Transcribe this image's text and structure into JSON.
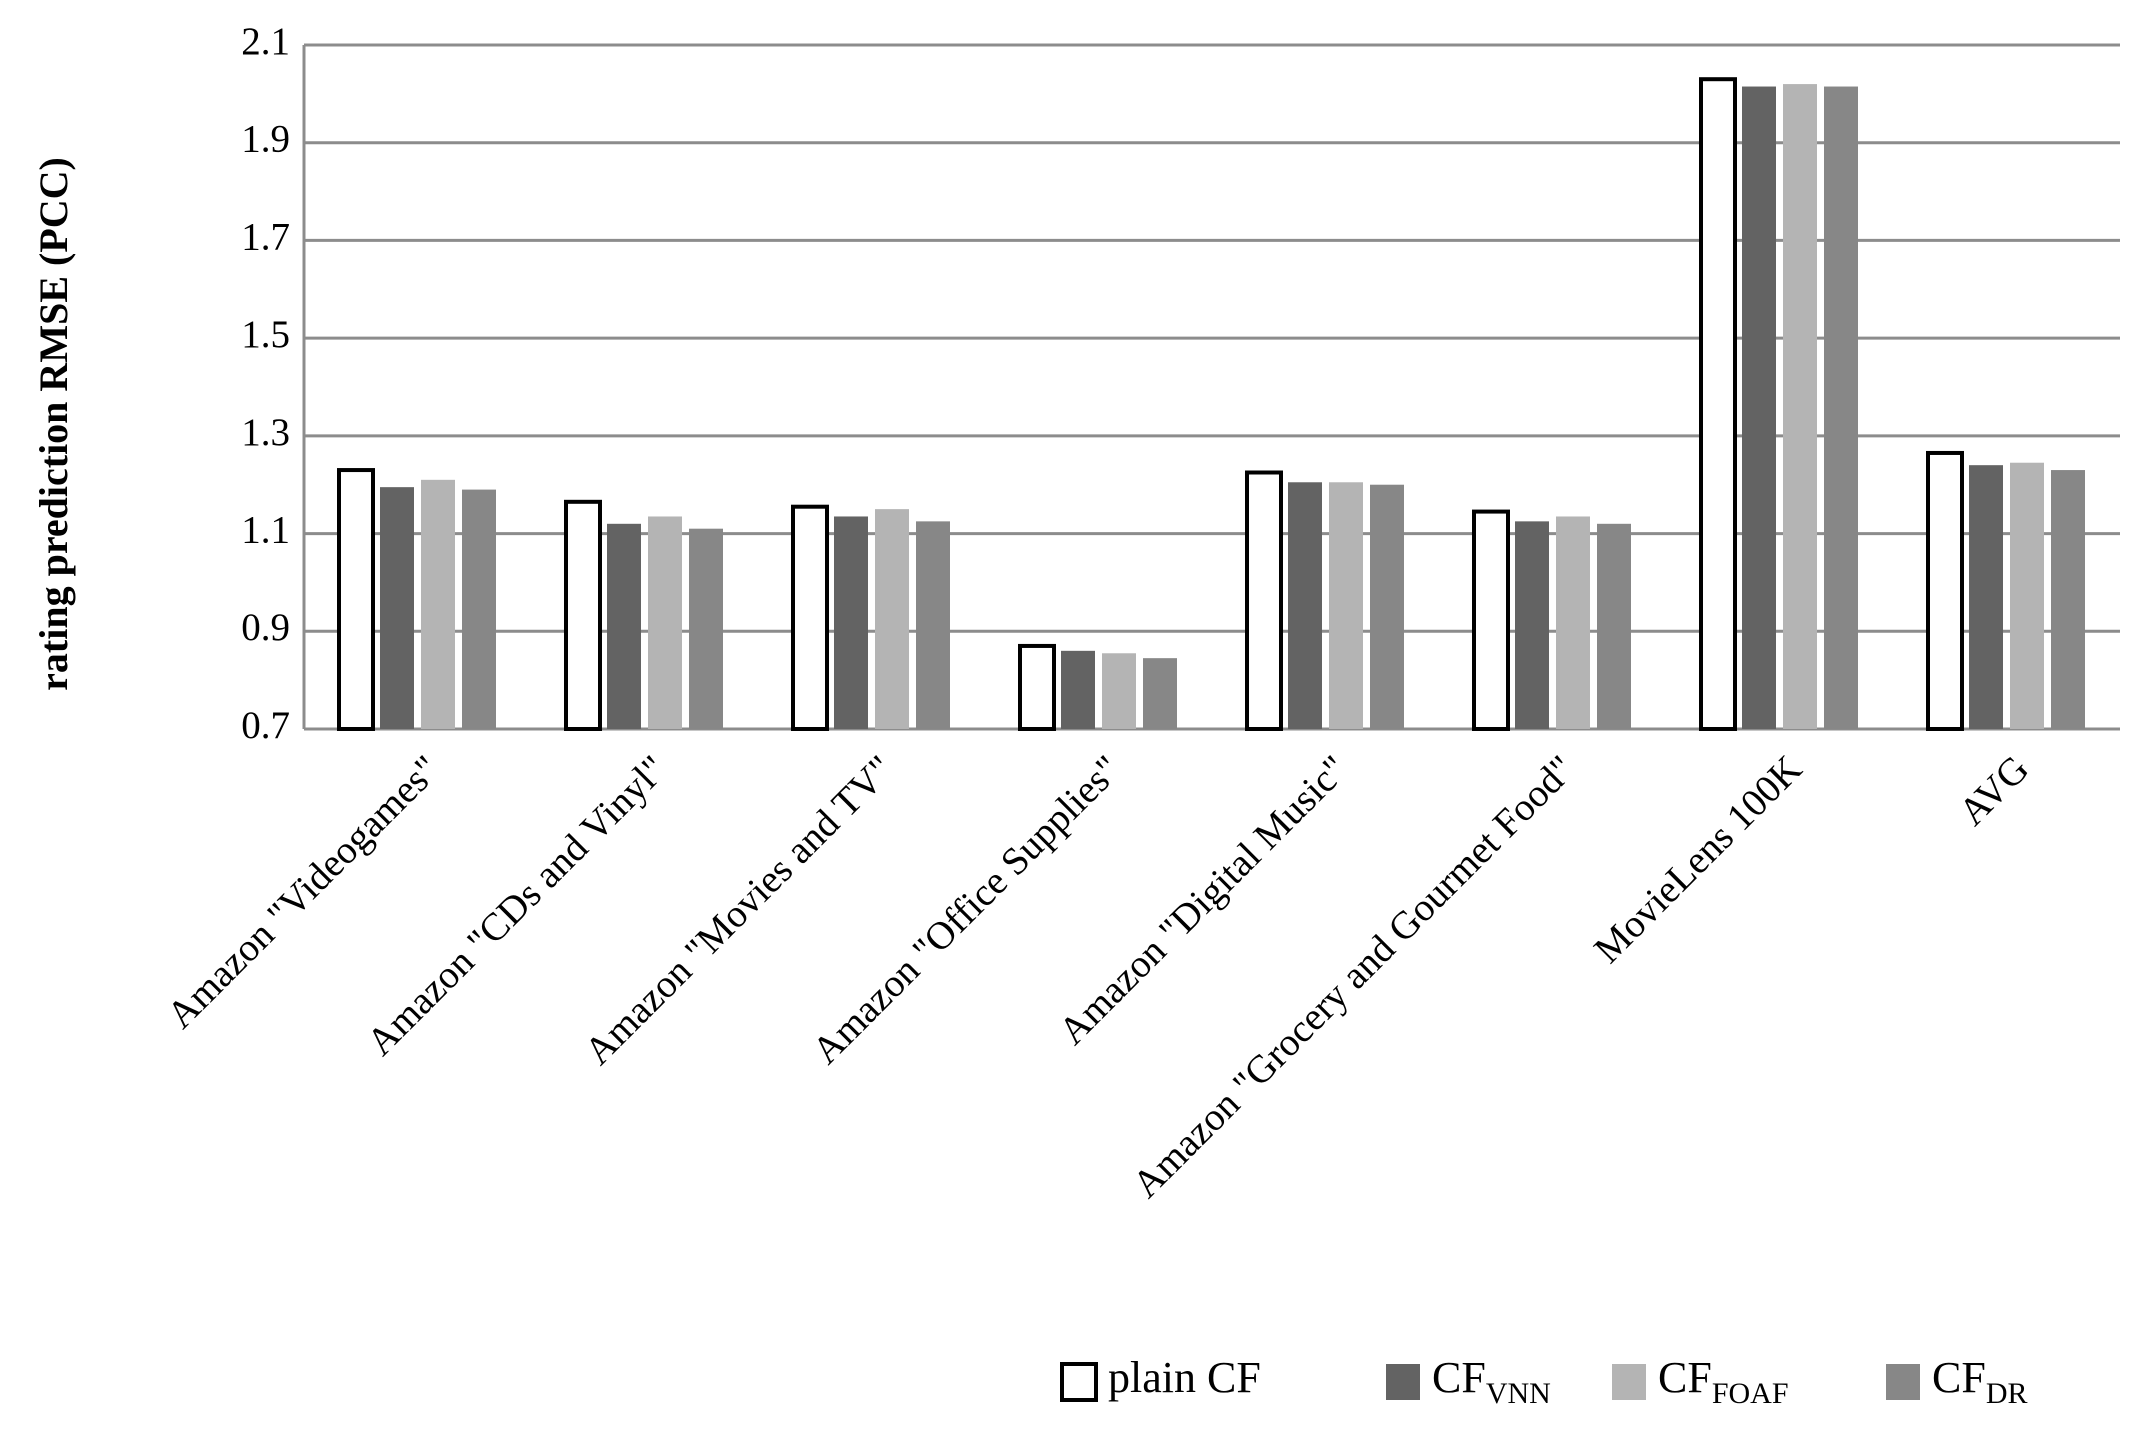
{
  "chart_data": {
    "type": "bar",
    "y_label": "rating prediction RMSE (PCC)",
    "categories": [
      "Amazon \"Videogames\"",
      "Amazon \"CDs and Vinyl\"",
      "Amazon \"Movies and TV\"",
      "Amazon \"Office Supplies\"",
      "Amazon \"Digital Music\"",
      "Amazon \"Grocery and Gourmet Food\"",
      "MovieLens 100K",
      "AVG"
    ],
    "series": [
      {
        "name": "plain CF",
        "color": "#ffffff",
        "values": [
          1.23,
          1.165,
          1.155,
          0.87,
          1.225,
          1.145,
          2.03,
          1.265
        ]
      },
      {
        "name": "CF",
        "subscript": "VNN",
        "color": "#636363",
        "values": [
          1.195,
          1.12,
          1.135,
          0.86,
          1.205,
          1.125,
          2.015,
          1.24
        ]
      },
      {
        "name": "CF",
        "subscript": "FOAF",
        "color": "#b4b4b4",
        "values": [
          1.21,
          1.135,
          1.15,
          0.855,
          1.205,
          1.135,
          2.02,
          1.245
        ]
      },
      {
        "name": "CF",
        "subscript": "DR",
        "color": "#878787",
        "values": [
          1.19,
          1.11,
          1.125,
          0.845,
          1.2,
          1.12,
          2.015,
          1.23
        ]
      }
    ],
    "ylim": [
      0.7,
      2.1
    ],
    "yticks": [
      0.7,
      0.9,
      1.1,
      1.3,
      1.5,
      1.7,
      1.9,
      2.1
    ],
    "grid": true,
    "legend": "bottom-right"
  }
}
